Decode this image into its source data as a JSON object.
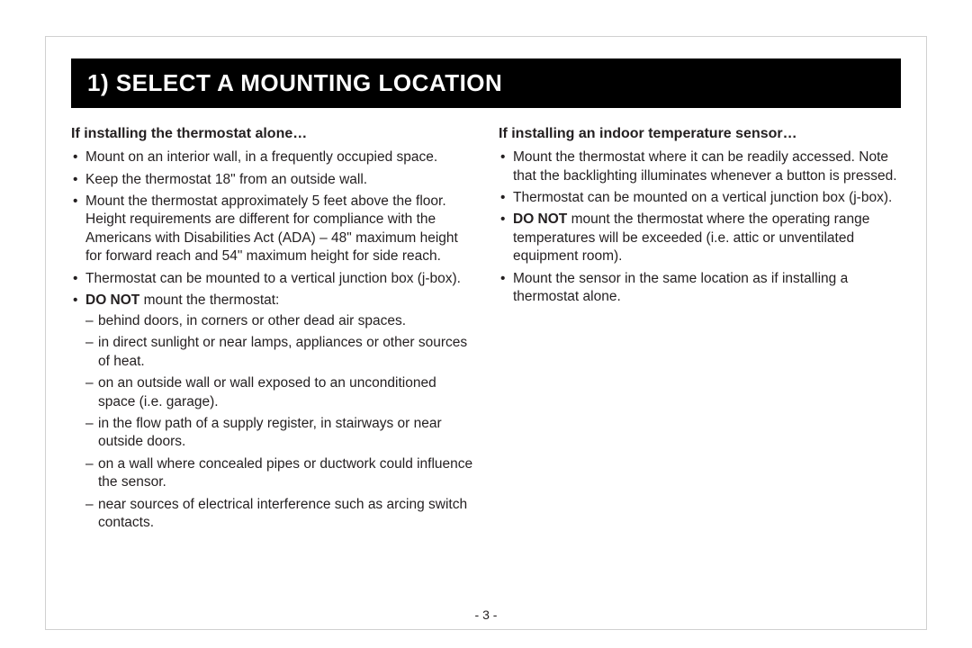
{
  "title": "1) SELECT A MOUNTING LOCATION",
  "left": {
    "heading": "If installing the thermostat alone…",
    "b1": "Mount on an interior wall, in a frequently occupied space.",
    "b2": "Keep the thermostat 18\" from an outside wall.",
    "b3": "Mount the thermostat approximately 5 feet above the floor. Height requirements are different for compliance with the Americans with Disabilities Act (ADA) – 48\" maximum height for forward reach and 54\" maximum height for side reach.",
    "b4": "Thermostat can be mounted to a vertical junction box (j-box).",
    "b5_bold": "DO NOT",
    "b5_rest": " mount the thermostat:",
    "d1": "behind doors, in corners or other dead air spaces.",
    "d2": "in direct sunlight or near lamps, appliances or other sources of heat.",
    "d3": "on an outside wall or wall exposed to an unconditioned space (i.e. garage).",
    "d4": "in the flow path of a supply register, in stairways or near outside doors.",
    "d5": "on a wall where concealed pipes or ductwork could influence the sensor.",
    "d6": "near sources of electrical interference such as arcing switch contacts."
  },
  "right": {
    "heading": "If installing an indoor temperature sensor…",
    "b1": "Mount the thermostat where it can be readily accessed. Note that the backlighting illuminates whenever a button is pressed.",
    "b2": "Thermostat can be mounted on a vertical junction box (j-box).",
    "b3_bold": "DO NOT",
    "b3_rest": " mount the thermostat where the operating range temperatures will be exceeded (i.e. attic or unventilated equipment room).",
    "b4": "Mount the sensor in the same location as if installing a thermostat alone."
  },
  "page_number": "- 3 -"
}
